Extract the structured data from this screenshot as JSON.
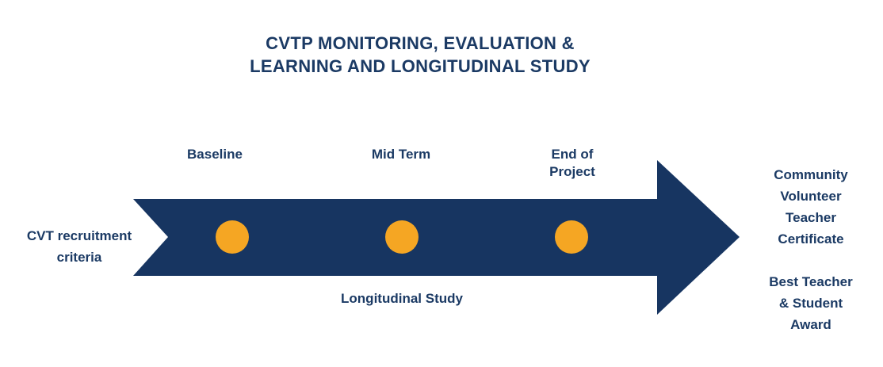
{
  "title": {
    "line1": "CVTP MONITORING, EVALUATION &",
    "line2": "LEARNING AND LONGITUDINAL STUDY"
  },
  "milestones": {
    "baseline": "Baseline",
    "mid_term": "Mid Term",
    "end_of_project_line1": "End of",
    "end_of_project_line2": "Project"
  },
  "left_label": {
    "line1": "CVT recruitment",
    "line2": "criteria"
  },
  "bottom_label": "Longitudinal Study",
  "outcomes": {
    "certificate_line1": "Community",
    "certificate_line2": "Volunteer",
    "certificate_line3": "Teacher",
    "certificate_line4": "Certificate",
    "award_line1": "Best Teacher",
    "award_line2": "& Student",
    "award_line3": "Award"
  },
  "colors": {
    "arrow": "#173561",
    "milestone_dot": "#f5a623",
    "text": "#1b3a64"
  }
}
